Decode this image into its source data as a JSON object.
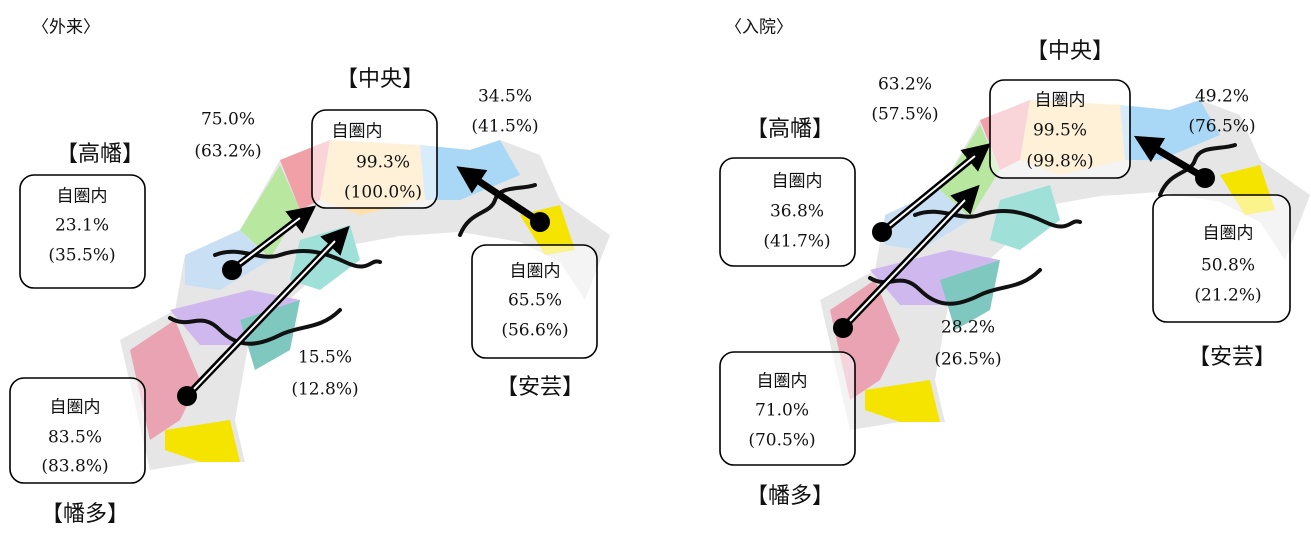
{
  "panels": [
    {
      "title": "〈外来〉",
      "regions": [
        {
          "name": "【高幡】",
          "box": [
            "自圏内",
            "23.1%",
            "(35.5%)"
          ]
        },
        {
          "name": "【中央】",
          "box": [
            "自圏内",
            "99.3%",
            "(100.0%)"
          ]
        },
        {
          "name": "【安芸】",
          "box": [
            "自圏内",
            "65.5%",
            "(56.6%)"
          ]
        },
        {
          "name": "【幡多】",
          "box": [
            "自圏内",
            "83.5%",
            "(83.8%)"
          ]
        }
      ],
      "flows": [
        [
          "75.0%",
          "(63.2%)"
        ],
        [
          "34.5%",
          "(41.5%)"
        ],
        [
          "15.5%",
          "(12.8%)"
        ]
      ]
    },
    {
      "title": "〈入院〉",
      "regions": [
        {
          "name": "【高幡】",
          "box": [
            "自圏内",
            "36.8%",
            "(41.7%)"
          ]
        },
        {
          "name": "【中央】",
          "box": [
            "自圏内",
            "99.5%",
            "(99.8%)"
          ]
        },
        {
          "name": "【安芸】",
          "box": [
            "自圏内",
            "50.8%",
            "(21.2%)"
          ]
        },
        {
          "name": "【幡多】",
          "box": [
            "自圏内",
            "71.0%",
            "(70.5%)"
          ]
        }
      ],
      "flows": [
        [
          "63.2%",
          "(57.5%)"
        ],
        [
          "49.2%",
          "(76.5%)"
        ],
        [
          "28.2%",
          "(26.5%)"
        ]
      ]
    }
  ]
}
